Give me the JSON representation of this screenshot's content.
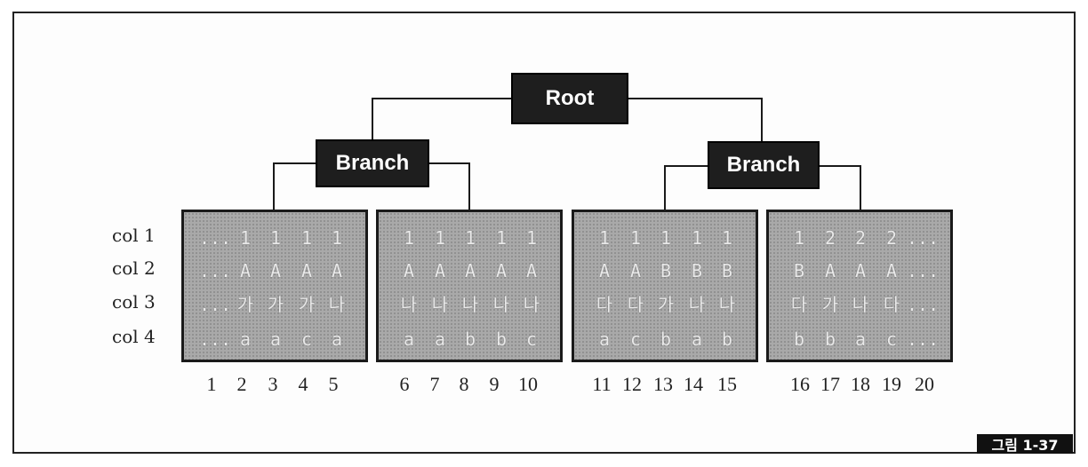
{
  "tree": {
    "root_label": "Root",
    "branches": [
      {
        "label": "Branch"
      },
      {
        "label": "Branch"
      }
    ]
  },
  "row_labels": [
    "col 1",
    "col 2",
    "col 3",
    "col 4"
  ],
  "leaves": [
    {
      "rows": [
        [
          "...",
          "1",
          "1",
          "1",
          "1"
        ],
        [
          "...",
          "A",
          "A",
          "A",
          "A"
        ],
        [
          "...",
          "가",
          "가",
          "가",
          "나"
        ],
        [
          "...",
          "a",
          "a",
          "c",
          "a"
        ]
      ],
      "numbers": [
        "1",
        "2",
        "3",
        "4",
        "5"
      ]
    },
    {
      "rows": [
        [
          "1",
          "1",
          "1",
          "1",
          "1"
        ],
        [
          "A",
          "A",
          "A",
          "A",
          "A"
        ],
        [
          "나",
          "나",
          "나",
          "나",
          "나"
        ],
        [
          "a",
          "a",
          "b",
          "b",
          "c"
        ]
      ],
      "numbers": [
        "6",
        "7",
        "8",
        "9",
        "10"
      ]
    },
    {
      "rows": [
        [
          "1",
          "1",
          "1",
          "1",
          "1"
        ],
        [
          "A",
          "A",
          "B",
          "B",
          "B"
        ],
        [
          "다",
          "다",
          "가",
          "나",
          "나"
        ],
        [
          "a",
          "c",
          "b",
          "a",
          "b"
        ]
      ],
      "numbers": [
        "11",
        "12",
        "13",
        "14",
        "15"
      ]
    },
    {
      "rows": [
        [
          "1",
          "2",
          "2",
          "2",
          "..."
        ],
        [
          "B",
          "A",
          "A",
          "A",
          "..."
        ],
        [
          "다",
          "가",
          "나",
          "다",
          "..."
        ],
        [
          "b",
          "b",
          "a",
          "c",
          "..."
        ]
      ],
      "numbers": [
        "16",
        "17",
        "18",
        "19",
        "20"
      ]
    }
  ],
  "figure_label": "그림 1-37",
  "colors": {
    "node_fill": "#1e1e1e",
    "leaf_fill": "#a9a9a9",
    "line": "#1a1a1a"
  }
}
